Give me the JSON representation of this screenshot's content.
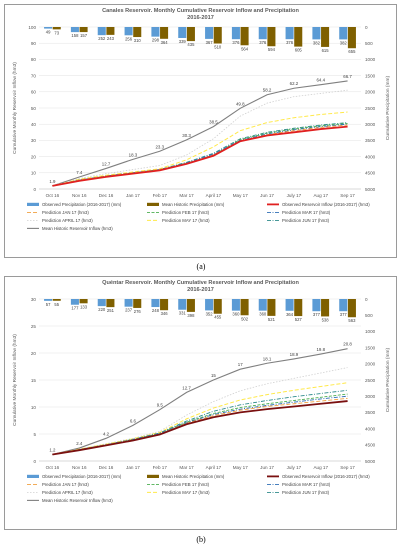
{
  "chart_data": [
    {
      "type": "line",
      "panel_label": "(a)",
      "title": "Canales Reservoir. Monthly Cumulative Reservoir Inflow and Precipitation",
      "subtitle": "2016-2017",
      "ylabel": "Cumulative Monthly Reservoir Inflow (hm3)",
      "y2label": "Cumulative Precipitation (mm)",
      "categories": [
        "Oct 16",
        "Nov 16",
        "Dec 16",
        "Jan 17",
        "Feb 17",
        "Mar 17",
        "April 17",
        "May 17",
        "Jun 17",
        "July 17",
        "Aug 17",
        "Sep 17"
      ],
      "ylim": [
        0,
        100
      ],
      "yticks": [
        0,
        10,
        20,
        30,
        40,
        50,
        60,
        70,
        80,
        90,
        100
      ],
      "y2lim": [
        0,
        5000
      ],
      "y2ticks": [
        0,
        500,
        1000,
        1500,
        2000,
        2500,
        3000,
        3500,
        4000,
        4500,
        5000
      ],
      "series": [
        {
          "name": "Mean Historic Reservoir Inflow (hm3)",
          "color": "#7f7f7f",
          "dash": "",
          "width": 1.1,
          "values": [
            1.9,
            7.4,
            12.7,
            18.3,
            23.3,
            30.3,
            38.5,
            49.8,
            58.2,
            62.2,
            64.4,
            66.7
          ],
          "labeled": true
        },
        {
          "name": "Prediction APRIL 17 (hm3)",
          "color": "#d0d0d0",
          "dash": "1.5,1.5",
          "width": 0.8,
          "values": [
            1.9,
            6.5,
            9.5,
            12.0,
            14.5,
            21.0,
            31.0,
            45.0,
            53.0,
            57.0,
            59.0,
            61.0
          ]
        },
        {
          "name": "Prediction MAY 17 (hm3)",
          "color": "#ffe94a",
          "dash": "4,2",
          "width": 1.0,
          "values": [
            1.9,
            6.0,
            8.5,
            10.5,
            12.5,
            18.0,
            26.0,
            36.0,
            41.0,
            44.0,
            46.0,
            47.5
          ]
        },
        {
          "name": "Prediction JUN 17 (hm3)",
          "color": "#2e8b8b",
          "dash": "4,1.5,1,1.5",
          "width": 0.9,
          "values": [
            1.9,
            5.5,
            8.0,
            10.0,
            12.0,
            16.5,
            22.0,
            31.0,
            35.0,
            37.5,
            39.5,
            41.0
          ]
        },
        {
          "name": "Prediction FEB 17 (hm3)",
          "color": "#4caf50",
          "dash": "3,1.5",
          "width": 0.9,
          "values": [
            1.9,
            5.5,
            8.0,
            10.0,
            12.0,
            16.0,
            21.0,
            30.5,
            34.5,
            37.0,
            39.0,
            40.5
          ]
        },
        {
          "name": "Prediction MAR 17 (hm3)",
          "color": "#2f6fb5",
          "dash": "4,1.5,1,1.5",
          "width": 0.9,
          "values": [
            1.9,
            5.5,
            8.0,
            10.0,
            12.0,
            16.0,
            21.5,
            30.0,
            34.0,
            36.5,
            38.5,
            40.0
          ]
        },
        {
          "name": "Prediction JAN 17 (hm3)",
          "color": "#f0a040",
          "dash": "4,2",
          "width": 0.9,
          "values": [
            1.9,
            5.5,
            8.0,
            10.0,
            12.0,
            15.5,
            21.0,
            29.5,
            33.5,
            36.0,
            38.0,
            39.5
          ]
        },
        {
          "name": "Observed Reservoir Inflow (2016-2017) (hm3)",
          "color": "#e02020",
          "dash": "",
          "width": 1.8,
          "values": [
            1.9,
            5.0,
            7.5,
            9.5,
            11.5,
            15.5,
            20.5,
            29.5,
            33.0,
            35.0,
            37.0,
            38.5
          ]
        }
      ],
      "bars": {
        "observed_name": "Observed Precipitation (2016-2017) (mm)",
        "observed_color": "#5b9bd5",
        "historic_name": "Mean Historic Precipitation (mm)",
        "historic_color": "#7f6000",
        "observed": [
          49,
          158,
          252,
          256,
          298,
          339,
          367,
          376,
          376,
          376,
          382,
          382
        ],
        "historic": [
          73,
          157,
          243,
          310,
          364,
          435,
          510,
          564,
          594,
          605,
          615,
          655
        ]
      },
      "legend": [
        [
          "Observed Precipitation (2016-2017) (mm)",
          "Mean Historic Precipitation (mm)",
          "Observed Reservoir Inflow (2016-2017) (hm3)"
        ],
        [
          "Prediction JAN 17 (hm3)",
          "Prediction FEB 17 (hm3)",
          "Prediction MAR 17 (hm3)"
        ],
        [
          "Prediction APRIL 17 (hm3)",
          "Prediction MAY 17 (hm3)",
          "Prediction JUN 17 (hm3)"
        ],
        [
          "Mean Historic Reservoir Inflow (hm3)"
        ]
      ]
    },
    {
      "type": "line",
      "panel_label": "(b)",
      "title": "Quéntar Reservoir. Monthly Cumulative Reservoir Inflow and Precipitation",
      "subtitle": "2016-2017",
      "ylabel": "Cumulative Monthly Reservoir Inflow (hm3)",
      "y2label": "Cumulative Precipitation (mm)",
      "categories": [
        "Oct 16",
        "Nov 16",
        "Dec 16",
        "Jan 17",
        "Feb 17",
        "Mar 17",
        "April 17",
        "May 17",
        "Jun 17",
        "July 17",
        "Aug 17",
        "Sep 17"
      ],
      "ylim": [
        0,
        30
      ],
      "yticks": [
        0,
        5,
        10,
        15,
        20,
        25,
        30
      ],
      "y2lim": [
        0,
        5000
      ],
      "y2ticks": [
        0,
        500,
        1000,
        1500,
        2000,
        2500,
        3000,
        3500,
        4000,
        4500,
        5000
      ],
      "series": [
        {
          "name": "Mean Historic Reservoir Inflow (hm3)",
          "color": "#7f7f7f",
          "dash": "",
          "width": 1.1,
          "values": [
            1.2,
            2.4,
            4.2,
            6.6,
            9.5,
            12.7,
            15.0,
            17.0,
            18.1,
            18.9,
            19.8,
            20.8
          ],
          "labeled": true
        },
        {
          "name": "Prediction APRIL 17 (hm3)",
          "color": "#d0d0d0",
          "dash": "1.5,1.5",
          "width": 0.8,
          "values": [
            1.2,
            2.2,
            3.2,
            4.2,
            5.5,
            8.5,
            11.0,
            13.0,
            14.3,
            15.3,
            16.3,
            17.3
          ]
        },
        {
          "name": "Prediction MAY 17 (hm3)",
          "color": "#ffe94a",
          "dash": "4,2",
          "width": 1.0,
          "values": [
            1.2,
            2.2,
            3.1,
            4.1,
            5.3,
            7.8,
            9.8,
            11.3,
            12.3,
            13.1,
            13.8,
            14.5
          ]
        },
        {
          "name": "Prediction JUN 17 (hm3)",
          "color": "#2e8b8b",
          "dash": "4,1.5,1,1.5",
          "width": 0.9,
          "values": [
            1.2,
            2.1,
            3.0,
            4.0,
            5.2,
            7.4,
            9.2,
            10.4,
            11.2,
            11.9,
            12.5,
            13.1
          ]
        },
        {
          "name": "Prediction FEB 17 (hm3)",
          "color": "#4caf50",
          "dash": "3,1.5",
          "width": 0.9,
          "values": [
            1.2,
            2.1,
            3.0,
            4.0,
            5.1,
            7.2,
            8.8,
            9.9,
            10.6,
            11.2,
            11.8,
            12.4
          ]
        },
        {
          "name": "Prediction MAR 17 (hm3)",
          "color": "#2f6fb5",
          "dash": "4,1.5,1,1.5",
          "width": 0.9,
          "values": [
            1.2,
            2.1,
            3.0,
            4.0,
            5.1,
            7.1,
            8.6,
            9.6,
            10.3,
            10.9,
            11.5,
            12.0
          ]
        },
        {
          "name": "Prediction JAN 17 (hm3)",
          "color": "#f0a040",
          "dash": "4,2",
          "width": 0.9,
          "values": [
            1.2,
            2.1,
            3.0,
            3.9,
            5.0,
            7.0,
            8.4,
            9.4,
            10.1,
            10.6,
            11.1,
            11.6
          ]
        },
        {
          "name": "Observed Reservoir Inflow (2016-2017) (hm3)",
          "color": "#7a1010",
          "dash": "",
          "width": 1.8,
          "values": [
            1.2,
            2.0,
            2.9,
            3.8,
            4.9,
            6.8,
            8.1,
            9.0,
            9.6,
            10.1,
            10.6,
            11.1
          ]
        }
      ],
      "bars": {
        "observed_name": "Observed Precipitation (2016-2017) (mm)",
        "observed_color": "#5b9bd5",
        "historic_name": "Mean Historic Precipitation (mm)",
        "historic_color": "#7f6000",
        "observed": [
          57,
          177,
          220,
          237,
          248,
          331,
          352,
          360,
          360,
          364,
          377,
          377
        ],
        "historic": [
          55,
          133,
          251,
          276,
          346,
          398,
          455,
          502,
          521,
          527,
          538,
          563
        ]
      },
      "legend": [
        [
          "Observed Precipitation (2016-2017) (mm)",
          "Mean Historic Precipitation (mm)",
          "Observed Reservoir Inflow (2016-2017) (hm3)"
        ],
        [
          "Prediction JAN 17 (hm3)",
          "Prediction FEB 17 (hm3)",
          "Prediction MAR 17 (hm3)"
        ],
        [
          "Prediction APRIL 17 (hm3)",
          "Prediction MAY 17 (hm3)",
          "Prediction JUN 17 (hm3)"
        ],
        [
          "Mean Historic Reservoir Inflow (hm3)"
        ]
      ]
    }
  ]
}
